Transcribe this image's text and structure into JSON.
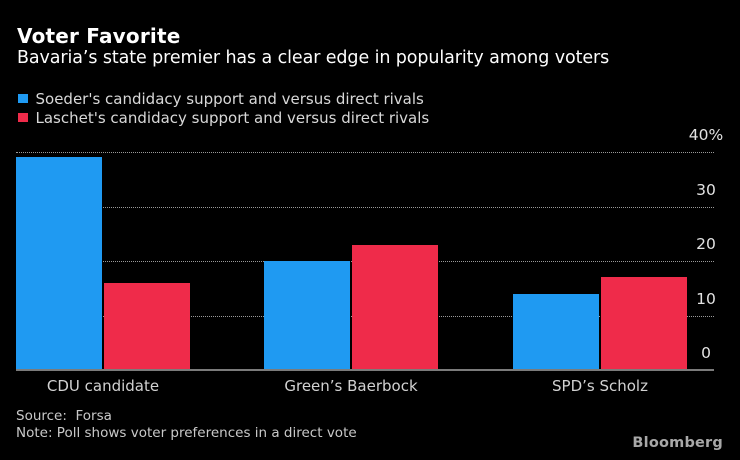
{
  "header": {
    "title": "Voter Favorite",
    "subtitle": "Bavaria’s state premier has a clear edge in popularity among voters"
  },
  "legend": [
    {
      "label": "Soeder's candidacy support and versus direct rivals",
      "color": "#1f9af2"
    },
    {
      "label": "Laschet's candidacy support and versus direct rivals",
      "color": "#ef2b4a"
    }
  ],
  "chart_data": {
    "type": "bar",
    "categories": [
      "CDU candidate",
      "Green’s Baerbock",
      "SPD’s Scholz"
    ],
    "series": [
      {
        "name": "Soeder's candidacy support and versus direct rivals",
        "key": "soeder",
        "color": "#1f9af2",
        "values": [
          39,
          20,
          14
        ]
      },
      {
        "name": "Laschet's candidacy support and versus direct rivals",
        "key": "laschet",
        "color": "#ef2b4a",
        "values": [
          16,
          23,
          17
        ]
      }
    ],
    "ylabel": "",
    "xlabel": "",
    "ylim": [
      0,
      40
    ],
    "yticks": [
      {
        "value": 40,
        "label": "40%"
      },
      {
        "value": 30,
        "label": "30"
      },
      {
        "value": 20,
        "label": "20"
      },
      {
        "value": 10,
        "label": "10"
      },
      {
        "value": 0,
        "label": "0"
      }
    ],
    "grid": "horizontal-dotted",
    "legend_position": "top-left",
    "background": "#000000"
  },
  "footer": {
    "source": "Source:  Forsa",
    "note": "Note: Poll shows voter preferences in a direct vote",
    "brand": "Bloomberg"
  },
  "colors": {
    "background": "#000000",
    "blue": "#1f9af2",
    "red": "#ef2b4a",
    "grid_line": "#9a9a9a",
    "axis_line": "#7b7b7b",
    "title_text": "#ffffff",
    "secondary_text": "#d2d2d2"
  }
}
